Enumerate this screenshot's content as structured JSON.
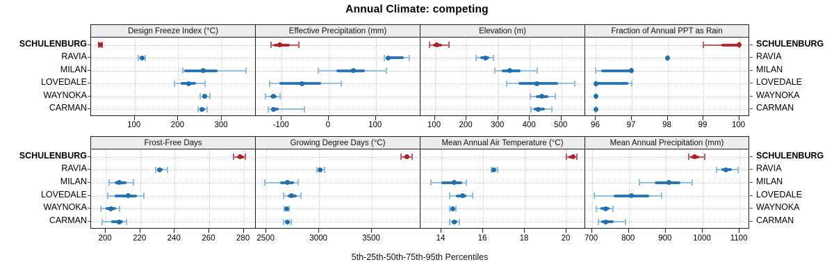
{
  "title": "Annual Climate: competing",
  "caption": "5th-25th-50th-75th-95th Percentiles",
  "sites": [
    "SCHULENBURG",
    "RAVIA",
    "MILAN",
    "LOVEDALE",
    "WAYNOKA",
    "CARMAN"
  ],
  "highlight_site": "SCHULENBURG",
  "colors": {
    "blue_main": "#1F6EB0",
    "blue_light": "#8FBFDE",
    "red_main": "#B02025",
    "red_light": "#C2595D",
    "strip_bg": "#ECECEC",
    "panel_border": "#1B1B1B",
    "grid": "#C8C8C8"
  },
  "chart_data": {
    "type": "dotplot-percentile",
    "title": "Annual Climate: competing",
    "xlabel": "5th-25th-50th-75th-95th Percentiles",
    "legend_position": "none",
    "grid": "dotted",
    "rows_order": [
      "SCHULENBURG",
      "RAVIA",
      "MILAN",
      "LOVEDALE",
      "WAYNOKA",
      "CARMAN"
    ],
    "percentiles_per_entry": [
      5,
      25,
      50,
      75,
      95
    ],
    "panels": [
      {
        "panel": "Design Freeze Index (°C)",
        "grid_row": 0,
        "grid_col": 0,
        "xlim": [
          0,
          378
        ],
        "ticks": [
          100,
          200,
          300
        ],
        "values": {
          "SCHULENBURG": [
            17,
            19,
            22,
            24,
            26
          ],
          "RAVIA": [
            109,
            113,
            118,
            121,
            125
          ],
          "MILAN": [
            211,
            214,
            258,
            290,
            355
          ],
          "LOVEDALE": [
            191,
            205,
            224,
            241,
            261
          ],
          "WAYNOKA": [
            251,
            256,
            261,
            266,
            273
          ],
          "CARMAN": [
            245,
            250,
            255,
            261,
            267
          ]
        }
      },
      {
        "panel": "Effective Precipitation (mm)",
        "grid_row": 0,
        "grid_col": 1,
        "xlim": [
          -155,
          195
        ],
        "ticks": [
          -100,
          0,
          100
        ],
        "values": {
          "SCHULENBURG": [
            -123,
            -117,
            -104,
            -83,
            -63
          ],
          "RAVIA": [
            118,
            122,
            127,
            160,
            172
          ],
          "MILAN": [
            -22,
            16,
            53,
            77,
            122
          ],
          "LOVEDALE": [
            -126,
            -105,
            -57,
            -16,
            27
          ],
          "WAYNOKA": [
            -134,
            -124,
            -117,
            -110,
            -103
          ],
          "CARMAN": [
            -128,
            -122,
            -117,
            -106,
            -51
          ]
        }
      },
      {
        "panel": "Elevation (m)",
        "grid_row": 0,
        "grid_col": 2,
        "xlim": [
          55,
          575
        ],
        "ticks": [
          100,
          200,
          300,
          400,
          500
        ],
        "values": {
          "SCHULENBURG": [
            84,
            95,
            107,
            123,
            146
          ],
          "RAVIA": [
            231,
            243,
            261,
            272,
            285
          ],
          "MILAN": [
            289,
            312,
            338,
            371,
            423
          ],
          "LOVEDALE": [
            326,
            364,
            423,
            489,
            542
          ],
          "WAYNOKA": [
            402,
            420,
            437,
            458,
            480
          ],
          "CARMAN": [
            403,
            413,
            426,
            447,
            469
          ]
        }
      },
      {
        "panel": "Fraction of Annual PPT as Rain",
        "grid_row": 0,
        "grid_col": 3,
        "xlim": [
          95.7,
          100.3
        ],
        "ticks": [
          96,
          97,
          98,
          99,
          100
        ],
        "values": {
          "SCHULENBURG": [
            99,
            99.5,
            100,
            100,
            100
          ],
          "RAVIA": [
            98,
            98,
            98,
            98,
            98
          ],
          "MILAN": [
            96,
            96.15,
            97,
            97,
            97
          ],
          "LOVEDALE": [
            96,
            96,
            96,
            96.9,
            97
          ],
          "WAYNOKA": [
            96,
            96,
            96,
            96,
            96
          ],
          "CARMAN": [
            96,
            96,
            96,
            96,
            96
          ]
        }
      },
      {
        "panel": "Frost-Free Days",
        "grid_row": 1,
        "grid_col": 0,
        "xlim": [
          191.5,
          287
        ],
        "ticks": [
          200,
          220,
          240,
          260,
          280
        ],
        "values": {
          "SCHULENBURG": [
            274,
            276,
            278,
            280,
            281
          ],
          "RAVIA": [
            229,
            230,
            231,
            233,
            236
          ],
          "MILAN": [
            202,
            205,
            208,
            212,
            216
          ],
          "LOVEDALE": [
            201,
            205,
            213,
            218,
            222
          ],
          "WAYNOKA": [
            197,
            200,
            203,
            206,
            208
          ],
          "CARMAN": [
            198,
            203,
            208,
            210,
            212
          ]
        }
      },
      {
        "panel": "Growing Degree Days (°C)",
        "grid_row": 1,
        "grid_col": 1,
        "xlim": [
          2400,
          3960
        ],
        "ticks": [
          2500,
          3000,
          3500
        ],
        "values": {
          "SCHULENBURG": [
            3775,
            3800,
            3830,
            3855,
            3880
          ],
          "RAVIA": [
            2976,
            2995,
            3009,
            3030,
            3053
          ],
          "MILAN": [
            2483,
            2630,
            2698,
            2762,
            2802
          ],
          "LOVEDALE": [
            2663,
            2700,
            2742,
            2790,
            2826
          ],
          "WAYNOKA": [
            2668,
            2680,
            2692,
            2704,
            2714
          ],
          "CARMAN": [
            2663,
            2680,
            2698,
            2715,
            2734
          ]
        }
      },
      {
        "panel": "Mean Annual Air Temperature (°C)",
        "grid_row": 1,
        "grid_col": 2,
        "xlim": [
          13.0,
          20.9
        ],
        "ticks": [
          14,
          16,
          18,
          20
        ],
        "values": {
          "SCHULENBURG": [
            20.0,
            20.1,
            20.3,
            20.4,
            20.5
          ],
          "RAVIA": [
            16.4,
            16.45,
            16.5,
            16.6,
            16.7
          ],
          "MILAN": [
            13.5,
            14.0,
            14.6,
            15.0,
            15.2
          ],
          "LOVEDALE": [
            14.4,
            14.7,
            15.0,
            15.2,
            15.5
          ],
          "WAYNOKA": [
            14.4,
            14.45,
            14.55,
            14.6,
            14.7
          ],
          "CARMAN": [
            14.4,
            14.5,
            14.6,
            14.75,
            14.85
          ]
        }
      },
      {
        "panel": "Mean Annual Precipitation (mm)",
        "grid_row": 1,
        "grid_col": 3,
        "xlim": [
          682,
          1128
        ],
        "ticks": [
          700,
          800,
          900,
          1000,
          1100
        ],
        "values": {
          "SCHULENBURG": [
            962,
            968,
            978,
            990,
            1005
          ],
          "RAVIA": [
            1037,
            1050,
            1064,
            1080,
            1096
          ],
          "MILAN": [
            828,
            870,
            908,
            940,
            972
          ],
          "LOVEDALE": [
            706,
            760,
            807,
            855,
            889
          ],
          "WAYNOKA": [
            713,
            724,
            737,
            748,
            758
          ],
          "CARMAN": [
            718,
            726,
            738,
            760,
            791
          ]
        }
      }
    ]
  }
}
